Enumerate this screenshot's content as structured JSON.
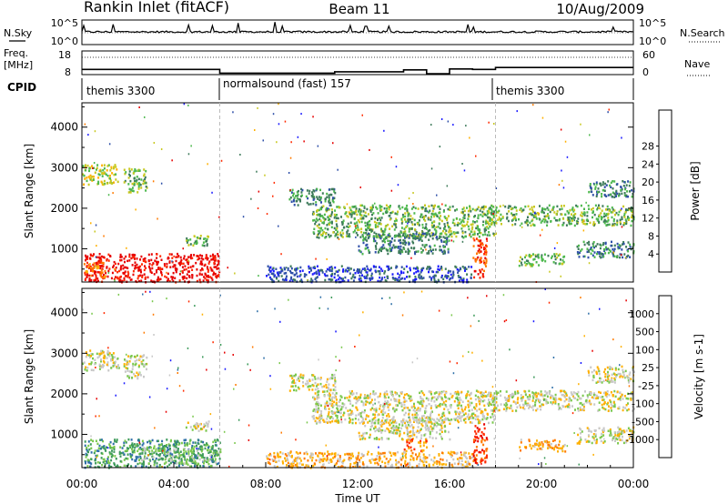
{
  "header": {
    "station": "Rankin Inlet (fitACF)",
    "beam": "Beam 11",
    "date": "10/Aug/2009"
  },
  "noise_panel": {
    "left_label": "N.Sky",
    "right_label": "N.Search",
    "left_ticks": [
      "10^5",
      "10^0"
    ],
    "right_ticks": [
      "10^5",
      "10^0"
    ]
  },
  "freq_panel": {
    "left_label_1": "Freq.",
    "left_label_2": "[MHz]",
    "right_label": "Nave",
    "left_ticks": [
      "18",
      "8"
    ],
    "right_ticks": [
      "60",
      "0"
    ],
    "freq_segments": [
      [
        0,
        6,
        10.2
      ],
      [
        6,
        11,
        8.6
      ],
      [
        11,
        14,
        9.2
      ],
      [
        14,
        15,
        10.0
      ],
      [
        15,
        16,
        8.4
      ],
      [
        16,
        17,
        10.4
      ],
      [
        17,
        18,
        10.2
      ],
      [
        18,
        24,
        11.0
      ]
    ]
  },
  "cpid": {
    "label": "CPID",
    "segments": [
      {
        "start": 0,
        "end": 6,
        "name": "themis 3300"
      },
      {
        "start": 6,
        "end": 18,
        "name": "normalsound (fast) 157"
      },
      {
        "start": 18,
        "end": 24,
        "name": "themis 3300"
      }
    ]
  },
  "chart_data": [
    {
      "type": "heatmap",
      "name": "power",
      "ylabel": "Slant Range [km]",
      "xlabel": "",
      "yticks": [
        "1000",
        "2000",
        "3000",
        "4000"
      ],
      "ylim": [
        180,
        4600
      ],
      "xlim": [
        0,
        24
      ],
      "colorbar": {
        "label": "Power [dB]",
        "ticks": [
          "4",
          "8",
          "12",
          "16",
          "20",
          "24",
          "28"
        ],
        "colors": [
          "#1a1aff",
          "#2e4fa8",
          "#3d7a5a",
          "#4db84d",
          "#c8c820",
          "#ffb000",
          "#ff7a00",
          "#ff2a00",
          "#e60000"
        ]
      },
      "regions": [
        {
          "t0": 0.0,
          "t1": 1.6,
          "r0": 2600,
          "r1": 3100,
          "level": 4
        },
        {
          "t0": 1.8,
          "t1": 2.8,
          "r0": 2400,
          "r1": 3000,
          "level": 3
        },
        {
          "t0": 0.1,
          "t1": 6.0,
          "r0": 200,
          "r1": 900,
          "level": 8
        },
        {
          "t0": 0.0,
          "t1": 1.0,
          "r0": 300,
          "r1": 700,
          "level": 6
        },
        {
          "t0": 4.5,
          "t1": 5.5,
          "r0": 1100,
          "r1": 1350,
          "level": 3
        },
        {
          "t0": 9.0,
          "t1": 11.0,
          "r0": 2100,
          "r1": 2500,
          "level": 2
        },
        {
          "t0": 10.0,
          "t1": 18.0,
          "r0": 1300,
          "r1": 2100,
          "level": 3
        },
        {
          "t0": 12.0,
          "t1": 16.0,
          "r0": 900,
          "r1": 1400,
          "level": 2
        },
        {
          "t0": 8.0,
          "t1": 17.0,
          "r0": 200,
          "r1": 600,
          "level": 1
        },
        {
          "t0": 17.0,
          "t1": 17.6,
          "r0": 300,
          "r1": 1300,
          "level": 7
        },
        {
          "t0": 17.6,
          "t1": 24.0,
          "r0": 1600,
          "r1": 2100,
          "level": 3
        },
        {
          "t0": 19.0,
          "t1": 21.0,
          "r0": 600,
          "r1": 900,
          "level": 3
        },
        {
          "t0": 21.5,
          "t1": 24.0,
          "r0": 800,
          "r1": 1200,
          "level": 2
        },
        {
          "t0": 22.0,
          "t1": 24.0,
          "r0": 2300,
          "r1": 2700,
          "level": 2
        }
      ]
    },
    {
      "type": "heatmap",
      "name": "velocity",
      "ylabel": "Slant Range [km]",
      "xlabel": "Time UT",
      "yticks": [
        "1000",
        "2000",
        "3000",
        "4000"
      ],
      "ylim": [
        180,
        4600
      ],
      "xlim": [
        0,
        24
      ],
      "xticks": [
        "00:00",
        "04:00",
        "08:00",
        "12:00",
        "16:00",
        "20:00",
        "00:00"
      ],
      "colorbar": {
        "label": "Velocity [m s-1]",
        "ticks": [
          "1000",
          "500",
          "100",
          "25",
          "-25",
          "-100",
          "-500",
          "-1000"
        ],
        "colors": [
          "#1a1aff",
          "#2e6fa8",
          "#3d9a5a",
          "#7ac84d",
          "#c8c8c8",
          "#ffb000",
          "#ff7a00",
          "#ff2a00",
          "#e60000"
        ]
      },
      "regions": [
        {
          "t0": 0.0,
          "t1": 1.6,
          "r0": 2600,
          "r1": 3100,
          "level": 4
        },
        {
          "t0": 1.8,
          "t1": 2.8,
          "r0": 2400,
          "r1": 3000,
          "level": 4
        },
        {
          "t0": 0.1,
          "t1": 6.0,
          "r0": 200,
          "r1": 900,
          "level": 2
        },
        {
          "t0": 2.5,
          "t1": 6.0,
          "r0": 300,
          "r1": 700,
          "level": 3
        },
        {
          "t0": 4.5,
          "t1": 5.5,
          "r0": 1100,
          "r1": 1350,
          "level": 4
        },
        {
          "t0": 9.0,
          "t1": 11.0,
          "r0": 2100,
          "r1": 2500,
          "level": 4
        },
        {
          "t0": 10.0,
          "t1": 18.0,
          "r0": 1300,
          "r1": 2100,
          "level": 4
        },
        {
          "t0": 12.0,
          "t1": 16.0,
          "r0": 900,
          "r1": 1400,
          "level": 4
        },
        {
          "t0": 8.0,
          "t1": 17.0,
          "r0": 200,
          "r1": 600,
          "level": 5
        },
        {
          "t0": 14.0,
          "t1": 15.0,
          "r0": 600,
          "r1": 900,
          "level": 6
        },
        {
          "t0": 17.0,
          "t1": 17.6,
          "r0": 300,
          "r1": 1300,
          "level": 7
        },
        {
          "t0": 17.6,
          "t1": 24.0,
          "r0": 1600,
          "r1": 2100,
          "level": 4
        },
        {
          "t0": 19.0,
          "t1": 21.0,
          "r0": 600,
          "r1": 900,
          "level": 5
        },
        {
          "t0": 21.5,
          "t1": 24.0,
          "r0": 800,
          "r1": 1200,
          "level": 4
        },
        {
          "t0": 22.0,
          "t1": 24.0,
          "r0": 2300,
          "r1": 2700,
          "level": 4
        }
      ]
    }
  ]
}
